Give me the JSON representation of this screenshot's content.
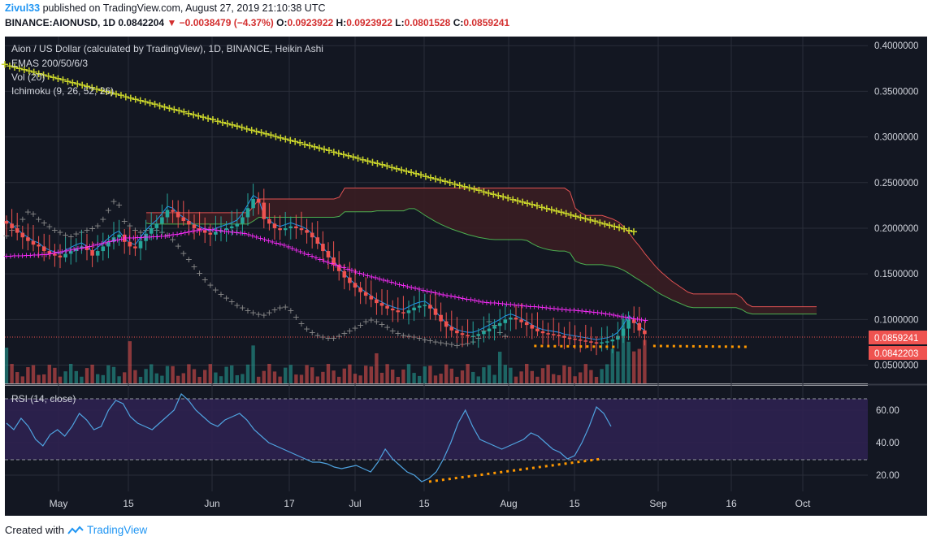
{
  "header": {
    "author": "Zivul33",
    "published_text": "published on TradingView.com, August 27, 2019 21:10:38 UTC",
    "symbol": "BINANCE:AIONUSD",
    "interval": "1D",
    "last": "0.0842204",
    "change": "−0.0038479 (−4.37%)",
    "o_label": "O:",
    "o": "0.0923922",
    "h_label": "H:",
    "h": "0.0923922",
    "l_label": "L:",
    "l": "0.0801528",
    "c_label": "C:",
    "c": "0.0859241"
  },
  "legend": {
    "title": "Aion / US Dollar (calculated by TradingView), 1D, BINANCE, Heikin Ashi",
    "ema": "EMAS 200/50/6/3",
    "vol": "Vol (20)",
    "ichimoku": "Ichimoku (9, 26, 52, 26)",
    "rsi": "RSI (14, close)"
  },
  "footer": {
    "created": "Created with",
    "brand": "TradingView"
  },
  "colors": {
    "background": "#131722",
    "grid": "#2a2e39",
    "up": "#26a69a",
    "down": "#ef5350",
    "ema200": "#c8d32b",
    "ema50": "#ff2bff",
    "conversion": "#2196f3",
    "lagging": "#8a8a8a",
    "cloud": "#3a1d22",
    "rsi_line": "#4fa3e0",
    "rsi_band": "#2d2150",
    "trendline": "#ff9800",
    "price_label": "#ef5350"
  },
  "chart_data": [
    {
      "type": "candlestick",
      "subtype": "heikin-ashi",
      "x_ticks": [
        "May",
        "15",
        "Jun",
        "17",
        "Jul",
        "15",
        "Aug",
        "15",
        "Sep",
        "16",
        "Oct"
      ],
      "y_ticks": [
        "0.4000000",
        "0.3500000",
        "0.3000000",
        "0.2500000",
        "0.2000000",
        "0.1500000",
        "0.1000000",
        "0.0500000"
      ],
      "ylim": [
        0.03,
        0.41
      ],
      "x_range_days": [
        "2019-04-18",
        "2019-10-24"
      ],
      "price_labels": [
        {
          "value": "0.0859241"
        },
        {
          "value": "0.0842203"
        }
      ],
      "close_series": [
        0.205,
        0.2,
        0.195,
        0.19,
        0.186,
        0.182,
        0.18,
        0.175,
        0.172,
        0.17,
        0.168,
        0.172,
        0.175,
        0.178,
        0.18,
        0.176,
        0.17,
        0.175,
        0.18,
        0.185,
        0.19,
        0.193,
        0.185,
        0.18,
        0.178,
        0.186,
        0.194,
        0.2,
        0.205,
        0.212,
        0.22,
        0.218,
        0.212,
        0.208,
        0.204,
        0.2,
        0.198,
        0.195,
        0.193,
        0.196,
        0.198,
        0.2,
        0.202,
        0.205,
        0.212,
        0.222,
        0.232,
        0.228,
        0.21,
        0.205,
        0.2,
        0.198,
        0.2,
        0.202,
        0.2,
        0.198,
        0.195,
        0.19,
        0.183,
        0.175,
        0.168,
        0.16,
        0.153,
        0.146,
        0.14,
        0.135,
        0.13,
        0.126,
        0.122,
        0.118,
        0.115,
        0.112,
        0.11,
        0.108,
        0.107,
        0.11,
        0.113,
        0.115,
        0.116,
        0.112,
        0.105,
        0.098,
        0.092,
        0.088,
        0.085,
        0.083,
        0.082,
        0.082,
        0.084,
        0.087,
        0.09,
        0.093,
        0.096,
        0.1,
        0.102,
        0.1,
        0.097,
        0.094,
        0.09,
        0.087,
        0.085,
        0.084,
        0.083,
        0.082,
        0.08,
        0.079,
        0.078,
        0.077,
        0.076,
        0.075,
        0.074,
        0.075,
        0.076,
        0.078,
        0.082,
        0.09,
        0.1,
        0.096,
        0.088,
        0.084
      ],
      "ema200": {
        "start": 0.38,
        "end": 0.197
      },
      "ema50_points": [
        [
          0,
          0.17
        ],
        [
          10,
          0.172
        ],
        [
          20,
          0.18
        ],
        [
          30,
          0.19
        ],
        [
          40,
          0.192
        ],
        [
          50,
          0.2
        ],
        [
          60,
          0.195
        ],
        [
          70,
          0.182
        ],
        [
          80,
          0.165
        ],
        [
          90,
          0.15
        ],
        [
          100,
          0.138
        ],
        [
          110,
          0.128
        ],
        [
          120,
          0.12
        ],
        [
          130,
          0.116
        ],
        [
          140,
          0.112
        ],
        [
          150,
          0.108
        ],
        [
          155,
          0.104
        ],
        [
          162,
          0.099
        ]
      ],
      "trendline_support": [
        [
          135,
          0.071
        ],
        [
          150,
          0.07
        ]
      ],
      "trendline_support_2": [
        [
          165,
          0.071
        ],
        [
          183,
          0.07
        ]
      ]
    },
    {
      "type": "line",
      "name": "RSI (14, close)",
      "y_ticks": [
        "60.00",
        "40.00",
        "20.00"
      ],
      "ylim": [
        10,
        75
      ],
      "band": [
        30,
        70
      ],
      "values": [
        52,
        48,
        55,
        50,
        42,
        38,
        45,
        48,
        44,
        50,
        58,
        54,
        48,
        50,
        60,
        66,
        64,
        56,
        52,
        50,
        48,
        52,
        56,
        60,
        70,
        66,
        60,
        56,
        52,
        50,
        54,
        56,
        58,
        54,
        48,
        44,
        40,
        38,
        36,
        34,
        32,
        30,
        28,
        28,
        27,
        25,
        24,
        25,
        26,
        24,
        22,
        28,
        36,
        30,
        26,
        22,
        20,
        16,
        18,
        22,
        30,
        40,
        52,
        60,
        50,
        42,
        40,
        38,
        36,
        38,
        40,
        42,
        46,
        44,
        40,
        36,
        34,
        30,
        32,
        40,
        50,
        62,
        58,
        50
      ],
      "divergence_line": [
        [
          130,
          16
        ],
        [
          186,
          30
        ]
      ]
    },
    {
      "type": "bar",
      "name": "Vol (20)"
    }
  ]
}
